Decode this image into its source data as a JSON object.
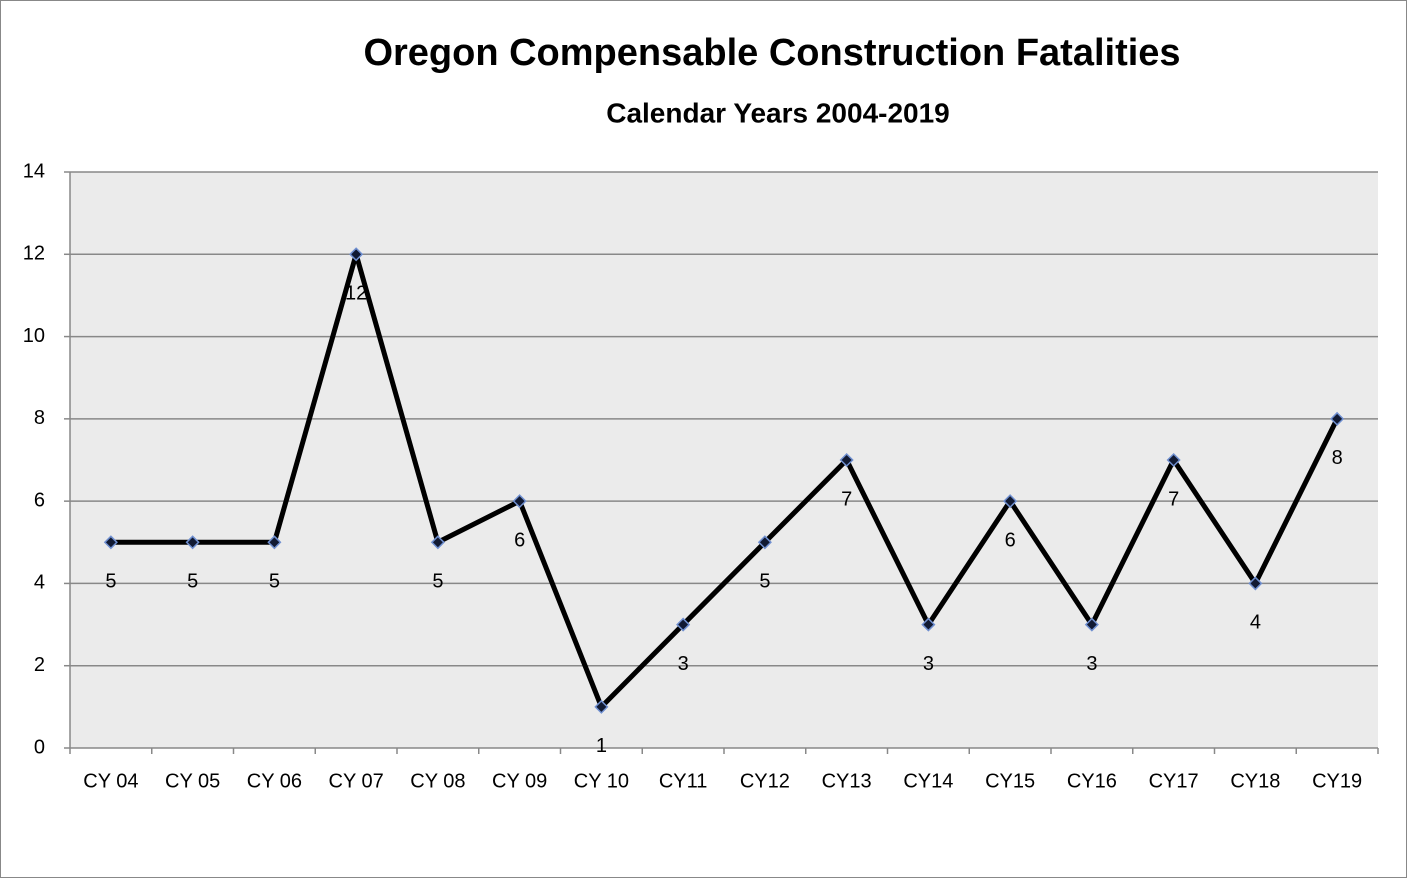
{
  "chart_data": {
    "type": "line",
    "title": "Oregon Compensable Construction Fatalities",
    "subtitle": "Calendar Years 2004-2019",
    "categories": [
      "CY 04",
      "CY 05",
      "CY 06",
      "CY 07",
      "CY 08",
      "CY 09",
      "CY 10",
      "CY11",
      "CY12",
      "CY13",
      "CY14",
      "CY15",
      "CY16",
      "CY17",
      "CY18",
      "CY19"
    ],
    "series": [
      {
        "color": "#000000",
        "values": [
          5,
          5,
          5,
          12,
          5,
          6,
          1,
          3,
          5,
          7,
          3,
          6,
          3,
          7,
          4,
          8
        ]
      }
    ],
    "ylim": [
      0,
      14
    ],
    "yticks": [
      0,
      2,
      4,
      6,
      8,
      10,
      12,
      14
    ],
    "grid": true
  }
}
